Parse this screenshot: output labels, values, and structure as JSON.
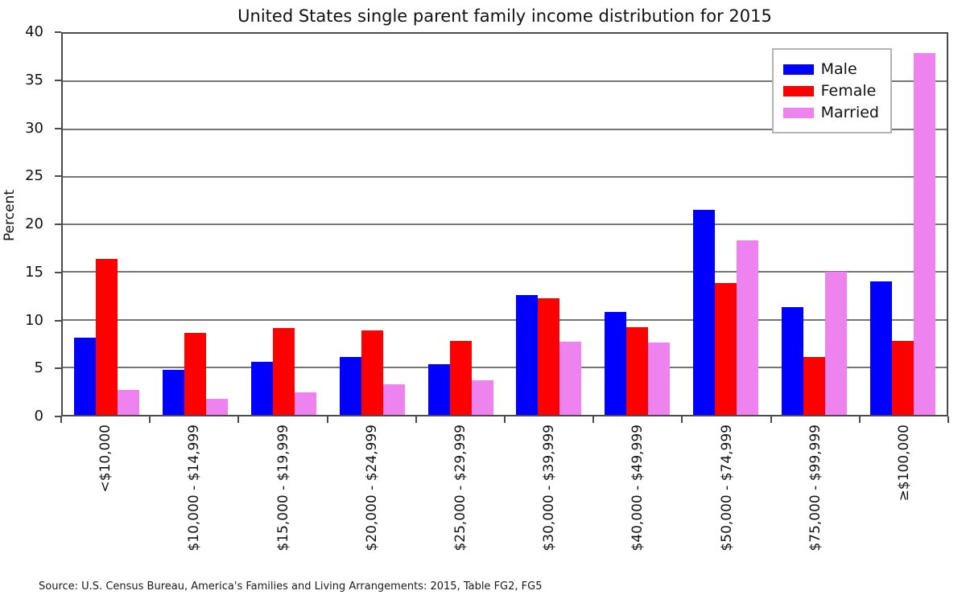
{
  "chart_data": {
    "type": "bar",
    "title": "United States single parent family income distribution for 2015",
    "ylabel": "Percent",
    "xlabel": "",
    "ylim": [
      0,
      40
    ],
    "ytick_step": 5,
    "grid": "horizontal",
    "legend_position": "top-right",
    "categories": [
      "<$10,000",
      "$10,000 - $14,999",
      "$15,000 - $19,999",
      "$20,000 - $24,999",
      "$25,000 - $29,999",
      "$30,000 - $39,999",
      "$40,000 - $49,999",
      "$50,000 - $74,999",
      "$75,000 - $99,999",
      "≥$100,000"
    ],
    "series": [
      {
        "name": "Male",
        "color": "#0000ff",
        "values": [
          8.1,
          4.7,
          5.6,
          6.1,
          5.3,
          12.6,
          10.8,
          21.5,
          11.3,
          14.0
        ]
      },
      {
        "name": "Female",
        "color": "#ff0000",
        "values": [
          16.4,
          8.6,
          9.1,
          8.9,
          7.8,
          12.2,
          9.2,
          13.8,
          6.1,
          7.8
        ]
      },
      {
        "name": "Married",
        "color": "#ee82ee",
        "values": [
          2.6,
          1.7,
          2.4,
          3.2,
          3.6,
          7.7,
          7.6,
          18.3,
          15.0,
          38.0
        ]
      }
    ]
  },
  "source_note": "Source: U.S. Census Bureau, America's Families and Living Arrangements: 2015, Table FG2, FG5",
  "colors": {
    "grid": "#757575",
    "spine": "#4b4b4b",
    "legend_border": "#b3b3b3"
  }
}
